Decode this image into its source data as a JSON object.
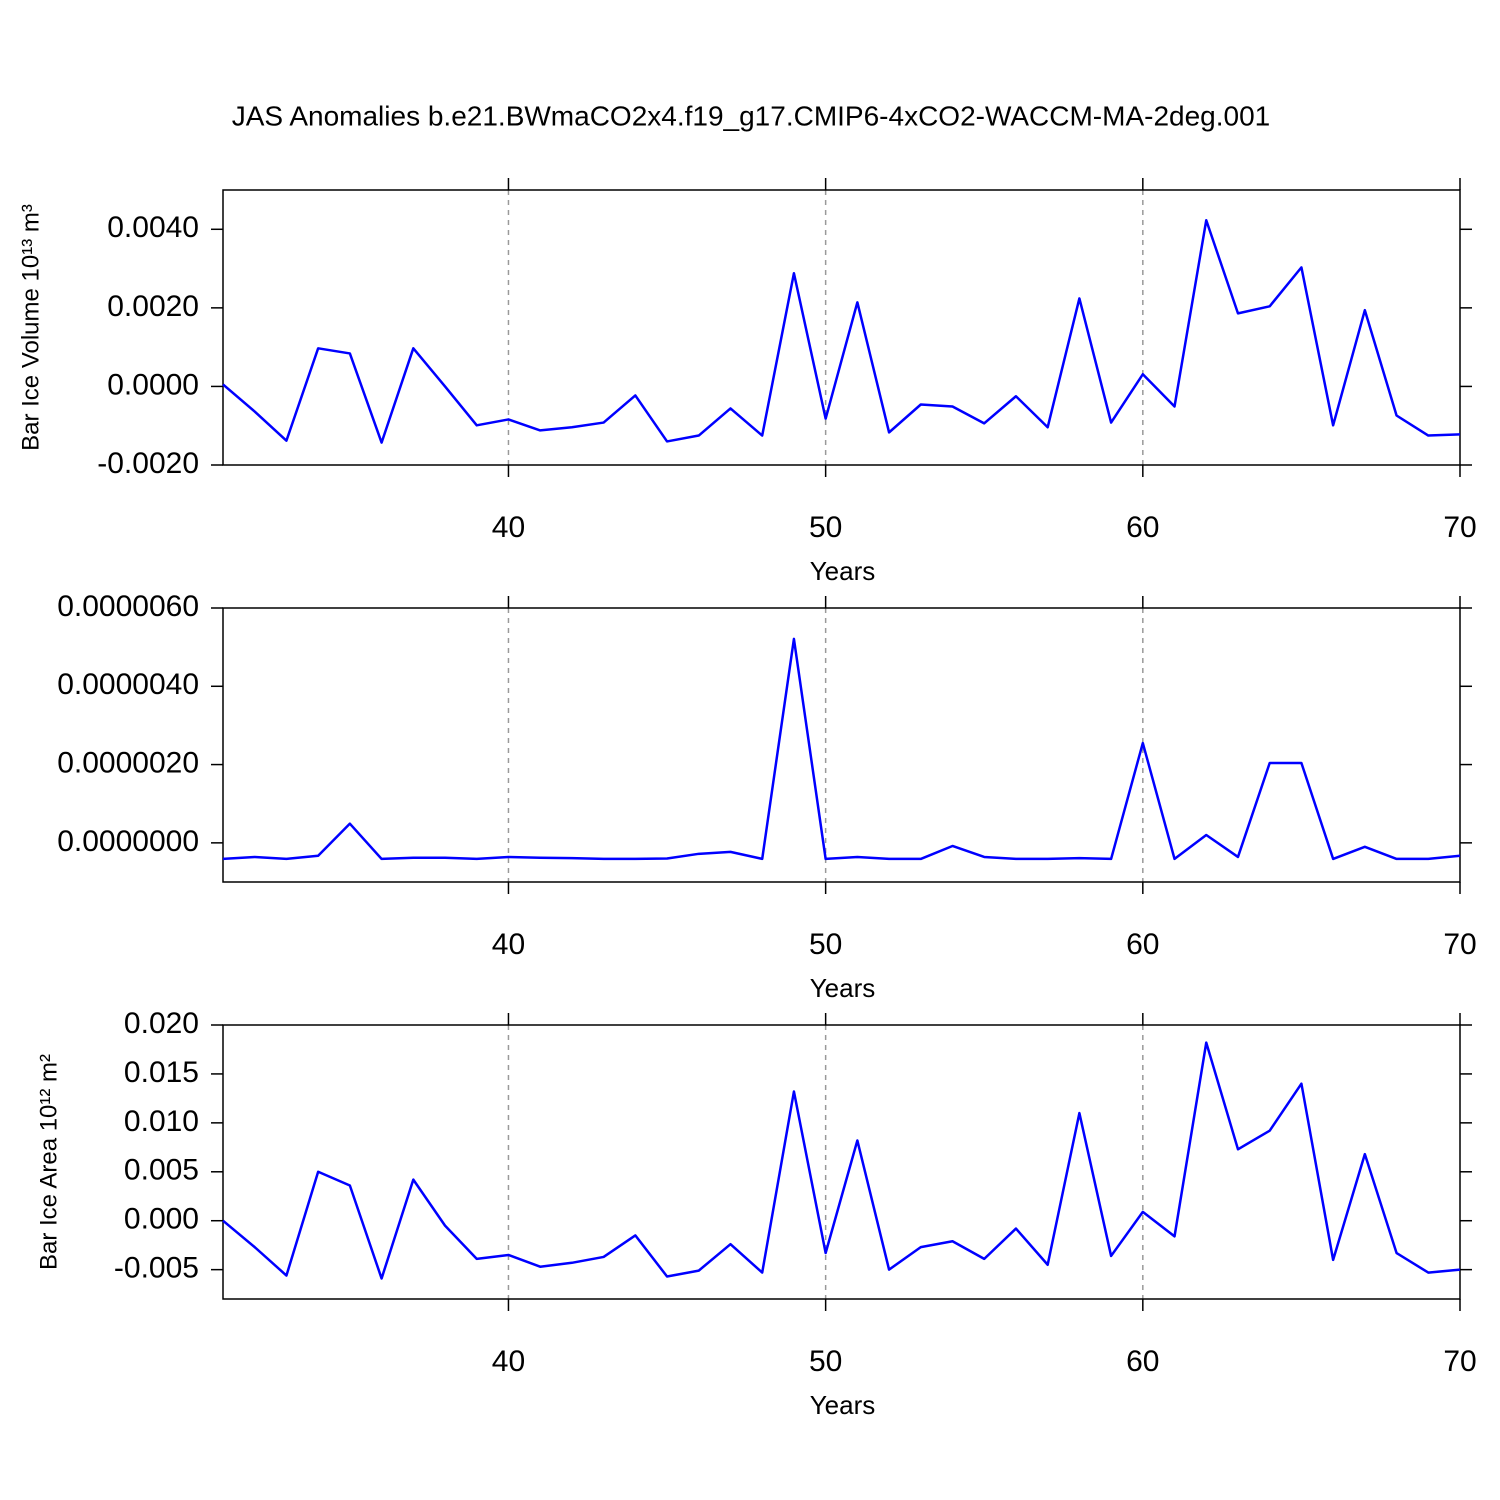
{
  "chart_data": [
    {
      "type": "line",
      "title": "JAS Anomalies b.e21.BWmaCO2x4.f19_g17.CMIP6-4xCO2-WACCM-MA-2deg.001",
      "xlabel": "Years",
      "ylabel": "Bar Ice Volume 10¹³ m³",
      "color": "#0000ff",
      "grid": "x",
      "x": [
        31,
        32,
        33,
        34,
        35,
        36,
        37,
        38,
        39,
        40,
        41,
        42,
        43,
        44,
        45,
        46,
        47,
        48,
        49,
        50,
        51,
        52,
        53,
        54,
        55,
        56,
        57,
        58,
        59,
        60,
        61,
        62,
        63,
        64,
        65,
        66,
        67,
        68,
        69,
        70
      ],
      "values": [
        5e-05,
        -0.00064,
        -0.00138,
        0.00097,
        0.00084,
        -0.00143,
        0.00097,
        0.0,
        -0.00099,
        -0.00084,
        -0.00112,
        -0.00104,
        -0.00092,
        -0.00023,
        -0.0014,
        -0.00125,
        -0.00056,
        -0.00125,
        0.00288,
        -0.00082,
        0.00214,
        -0.00117,
        -0.00046,
        -0.00051,
        -0.00094,
        -0.00025,
        -0.00104,
        0.00224,
        -0.00092,
        0.00031,
        -0.00051,
        0.00423,
        0.00186,
        0.00204,
        0.00303,
        -0.00099,
        0.00194,
        -0.00074,
        -0.00125,
        -0.00122
      ],
      "xlim": [
        31,
        70
      ],
      "xticks": [
        40,
        50,
        60,
        70
      ],
      "ylim": [
        -0.002,
        0.005
      ],
      "yticks": [
        {
          "value": -0.002,
          "label": "-0.0020"
        },
        {
          "value": 0,
          "label": "0.0000"
        },
        {
          "value": 0.002,
          "label": "0.0020"
        },
        {
          "value": 0.004,
          "label": "0.0040"
        }
      ]
    },
    {
      "type": "line",
      "xlabel": "Years",
      "color": "#0000ff",
      "grid": "x",
      "x": [
        31,
        32,
        33,
        34,
        35,
        36,
        37,
        38,
        39,
        40,
        41,
        42,
        43,
        44,
        45,
        46,
        47,
        48,
        49,
        50,
        51,
        52,
        53,
        54,
        55,
        56,
        57,
        58,
        59,
        60,
        61,
        62,
        63,
        64,
        65,
        66,
        67,
        68,
        69,
        70
      ],
      "values": [
        -4.1e-07,
        -3.6e-07,
        -4.1e-07,
        -3.3e-07,
        4.9e-07,
        -4.1e-07,
        -3.8e-07,
        -3.8e-07,
        -4.1e-07,
        -3.6e-07,
        -3.8e-07,
        -3.9e-07,
        -4.1e-07,
        -4.1e-07,
        -4e-07,
        -2.8e-07,
        -2.3e-07,
        -4.1e-07,
        5.21e-06,
        -4.1e-07,
        -3.6e-07,
        -4.1e-07,
        -4.1e-07,
        -8e-08,
        -3.6e-07,
        -4.1e-07,
        -4.1e-07,
        -3.9e-07,
        -4.1e-07,
        2.55e-06,
        -4.1e-07,
        2e-07,
        -3.6e-07,
        2.04e-06,
        2.04e-06,
        -4.1e-07,
        -1e-07,
        -4.1e-07,
        -4.1e-07,
        -3.3e-07
      ],
      "xlim": [
        31,
        70
      ],
      "xticks": [
        40,
        50,
        60,
        70
      ],
      "ylim": [
        -1e-06,
        6e-06
      ],
      "yticks": [
        {
          "value": 0,
          "label": "0.0000000"
        },
        {
          "value": 2e-06,
          "label": "0.0000020"
        },
        {
          "value": 4e-06,
          "label": "0.0000040"
        },
        {
          "value": 6e-06,
          "label": "0.0000060"
        }
      ]
    },
    {
      "type": "line",
      "xlabel": "Years",
      "ylabel": "Bar Ice Area 10¹² m²",
      "color": "#0000ff",
      "grid": "x",
      "x": [
        31,
        32,
        33,
        34,
        35,
        36,
        37,
        38,
        39,
        40,
        41,
        42,
        43,
        44,
        45,
        46,
        47,
        48,
        49,
        50,
        51,
        52,
        53,
        54,
        55,
        56,
        57,
        58,
        59,
        60,
        61,
        62,
        63,
        64,
        65,
        66,
        67,
        68,
        69,
        70
      ],
      "values": [
        0.0,
        -0.0027,
        -0.0056,
        0.005,
        0.0036,
        -0.0059,
        0.0042,
        -0.0005,
        -0.0039,
        -0.0035,
        -0.0047,
        -0.0043,
        -0.0037,
        -0.0015,
        -0.0057,
        -0.0051,
        -0.0024,
        -0.0053,
        0.0132,
        -0.0033,
        0.0082,
        -0.005,
        -0.0027,
        -0.0021,
        -0.0039,
        -0.0008,
        -0.0045,
        0.011,
        -0.0036,
        0.0009,
        -0.0016,
        0.0182,
        0.0073,
        0.0092,
        0.014,
        -0.004,
        0.0068,
        -0.0033,
        -0.0053,
        -0.005
      ],
      "xlim": [
        31,
        70
      ],
      "xticks": [
        40,
        50,
        60,
        70
      ],
      "ylim": [
        -0.008,
        0.02
      ],
      "yticks": [
        {
          "value": -0.005,
          "label": "-0.005"
        },
        {
          "value": 0,
          "label": "0.000"
        },
        {
          "value": 0.005,
          "label": "0.005"
        },
        {
          "value": 0.01,
          "label": "0.010"
        },
        {
          "value": 0.015,
          "label": "0.015"
        },
        {
          "value": 0.02,
          "label": "0.020"
        }
      ]
    }
  ]
}
